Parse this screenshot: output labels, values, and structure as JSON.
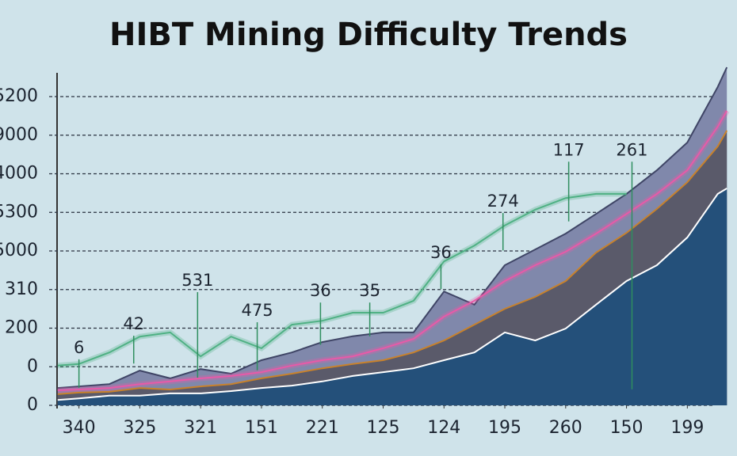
{
  "chart_data": {
    "type": "area",
    "title": "HIBT Mining Difficulty Trends",
    "xlim": [
      -0.36,
      10.66
    ],
    "xticks": [
      {
        "value": 0,
        "label": "340"
      },
      {
        "value": 1,
        "label": "325"
      },
      {
        "value": 2,
        "label": "321"
      },
      {
        "value": 3,
        "label": "151"
      },
      {
        "value": 4,
        "label": "221"
      },
      {
        "value": 5,
        "label": "125"
      },
      {
        "value": 6,
        "label": "124"
      },
      {
        "value": 7,
        "label": "195"
      },
      {
        "value": 8,
        "label": "260"
      },
      {
        "value": 9,
        "label": "150"
      },
      {
        "value": 10,
        "label": "199"
      }
    ],
    "ylim": [
      0,
      8.8
    ],
    "yticks": [
      {
        "value": 0,
        "label": "0"
      },
      {
        "value": 1,
        "label": "0"
      },
      {
        "value": 2,
        "label": "200"
      },
      {
        "value": 3,
        "label": "310"
      },
      {
        "value": 4,
        "label": "5000"
      },
      {
        "value": 5,
        "label": "5300"
      },
      {
        "value": 6,
        "label": "4000"
      },
      {
        "value": 7,
        "label": "9000"
      },
      {
        "value": 8,
        "label": "5200"
      }
    ],
    "grid": true,
    "x": [
      -0.35,
      0,
      0.5,
      1,
      1.5,
      2,
      2.5,
      3,
      3.5,
      4,
      4.5,
      5,
      5.5,
      6,
      6.5,
      7,
      7.5,
      8,
      8.5,
      9,
      9.5,
      10,
      10.5,
      10.65
    ],
    "series": [
      {
        "style": "area",
        "color": "#3f4566",
        "fill": "#8088ab",
        "values": [
          0.45,
          0.49,
          0.55,
          0.9,
          0.7,
          0.94,
          0.82,
          1.17,
          1.37,
          1.64,
          1.79,
          1.89,
          1.89,
          2.95,
          2.61,
          3.63,
          4.04,
          4.45,
          4.96,
          5.48,
          6.09,
          6.81,
          8.25,
          8.76
        ]
      },
      {
        "style": "line",
        "color": "#e85aa8",
        "values": [
          0.39,
          0.41,
          0.45,
          0.55,
          0.62,
          0.7,
          0.76,
          0.86,
          1.03,
          1.17,
          1.27,
          1.48,
          1.72,
          2.3,
          2.71,
          3.22,
          3.63,
          3.98,
          4.45,
          4.96,
          5.48,
          6.09,
          7.22,
          7.63
        ]
      },
      {
        "style": "area",
        "color": "#c8822c",
        "fill": "#5a5a6a",
        "values": [
          0.29,
          0.33,
          0.35,
          0.45,
          0.41,
          0.49,
          0.55,
          0.7,
          0.82,
          0.96,
          1.07,
          1.17,
          1.37,
          1.68,
          2.09,
          2.5,
          2.81,
          3.22,
          3.96,
          4.47,
          5.09,
          5.78,
          6.71,
          7.12
        ]
      },
      {
        "style": "area",
        "color": "#ffffff",
        "fill": "#24507a",
        "values": [
          0.14,
          0.18,
          0.25,
          0.25,
          0.31,
          0.31,
          0.37,
          0.45,
          0.51,
          0.62,
          0.76,
          0.86,
          0.96,
          1.17,
          1.37,
          1.89,
          1.68,
          1.99,
          2.61,
          3.22,
          3.63,
          4.35,
          5.48,
          5.62
        ]
      },
      {
        "style": "line",
        "color": "#4fb184",
        "values": [
          1.03,
          1.07,
          1.37,
          1.78,
          1.89,
          1.27,
          1.78,
          1.48,
          2.09,
          2.19,
          2.4,
          2.4,
          2.71,
          3.73,
          4.14,
          4.66,
          5.07,
          5.37,
          5.48,
          5.48,
          null,
          null,
          null,
          null
        ]
      }
    ],
    "annotations": [
      {
        "text": "6",
        "x": 0,
        "y": 1.48
      },
      {
        "text": "42",
        "x": 0.9,
        "y": 2.09
      },
      {
        "text": "531",
        "x": 1.95,
        "y": 3.22
      },
      {
        "text": "475",
        "x": 2.93,
        "y": 2.44
      },
      {
        "text": "36",
        "x": 3.97,
        "y": 2.95
      },
      {
        "text": "35",
        "x": 4.78,
        "y": 2.95
      },
      {
        "text": "36",
        "x": 5.95,
        "y": 3.94
      },
      {
        "text": "274",
        "x": 6.97,
        "y": 5.27
      },
      {
        "text": "117",
        "x": 8.05,
        "y": 6.6
      },
      {
        "text": "261",
        "x": 9.09,
        "y": 6.6
      }
    ]
  }
}
